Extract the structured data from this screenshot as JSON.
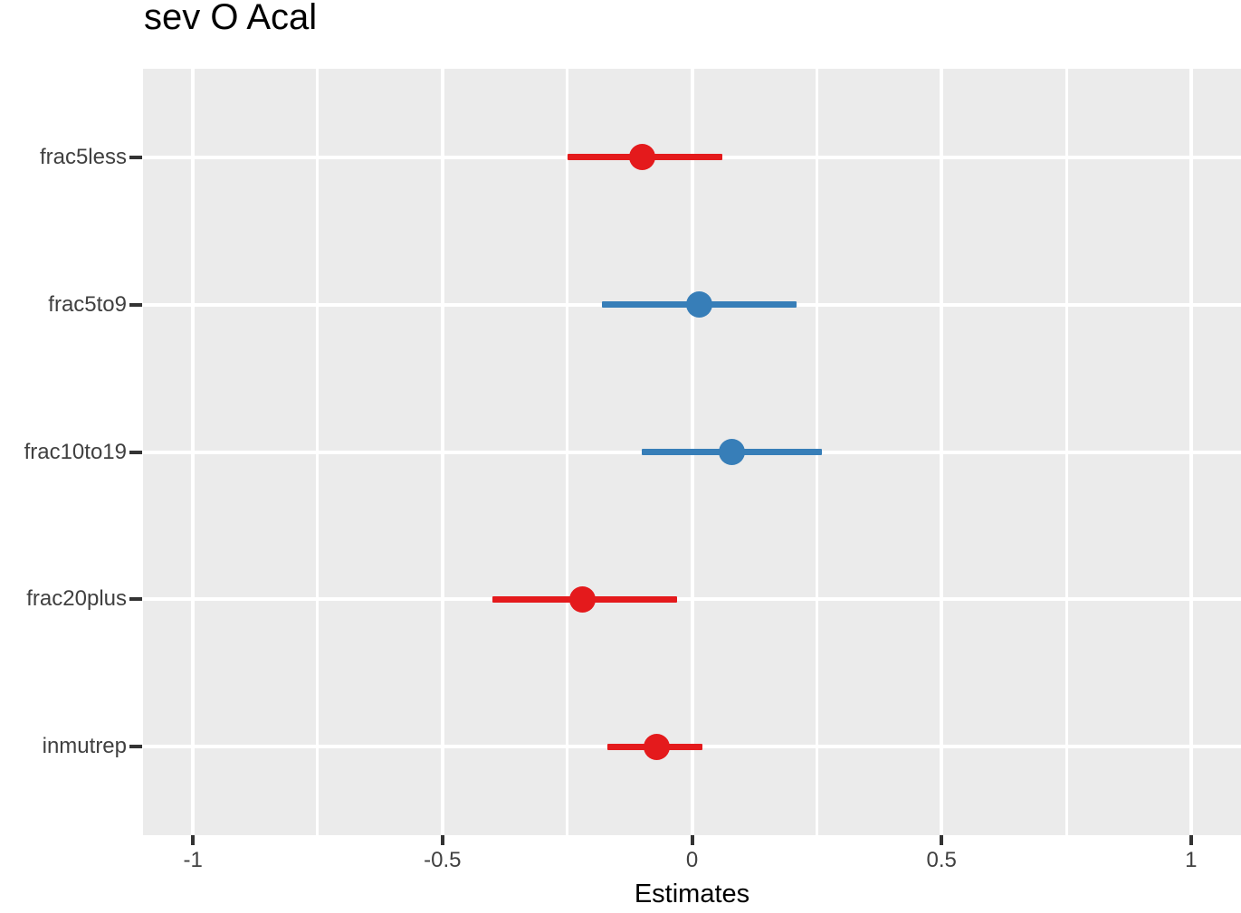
{
  "chart_data": {
    "type": "scatter",
    "subtype": "forest-coefficient-plot",
    "title": "sev O Acal",
    "xlabel": "Estimates",
    "ylabel": "",
    "categories": [
      "frac5less",
      "frac5to9",
      "frac10to19",
      "frac20plus",
      "inmutrep"
    ],
    "series": [
      {
        "name": "frac5less",
        "estimate": -0.1,
        "ci_low": -0.25,
        "ci_high": 0.06,
        "color": "#E41A1C"
      },
      {
        "name": "frac5to9",
        "estimate": 0.015,
        "ci_low": -0.18,
        "ci_high": 0.21,
        "color": "#377EB8"
      },
      {
        "name": "frac10to19",
        "estimate": 0.08,
        "ci_low": -0.1,
        "ci_high": 0.26,
        "color": "#377EB8"
      },
      {
        "name": "frac20plus",
        "estimate": -0.22,
        "ci_low": -0.4,
        "ci_high": -0.03,
        "color": "#E41A1C"
      },
      {
        "name": "inmutrep",
        "estimate": -0.07,
        "ci_low": -0.17,
        "ci_high": 0.02,
        "color": "#E41A1C"
      }
    ],
    "xlim": [
      -1.1,
      1.1
    ],
    "x_ticks": [
      -1,
      -0.5,
      0,
      0.5,
      1
    ],
    "x_tick_labels": [
      "-1",
      "-0.5",
      "0",
      "0.5",
      "1"
    ],
    "x_minor_ticks": [
      -0.75,
      -0.25,
      0.25,
      0.75
    ],
    "grid": true,
    "legend": "none",
    "colors": {
      "negative_effect": "#E41A1C",
      "positive_effect": "#377EB8"
    },
    "panel_bg": "#EBEBEB",
    "grid_color": "#FFFFFF",
    "tick_color": "#333333",
    "axis_text_color": "#404040"
  }
}
